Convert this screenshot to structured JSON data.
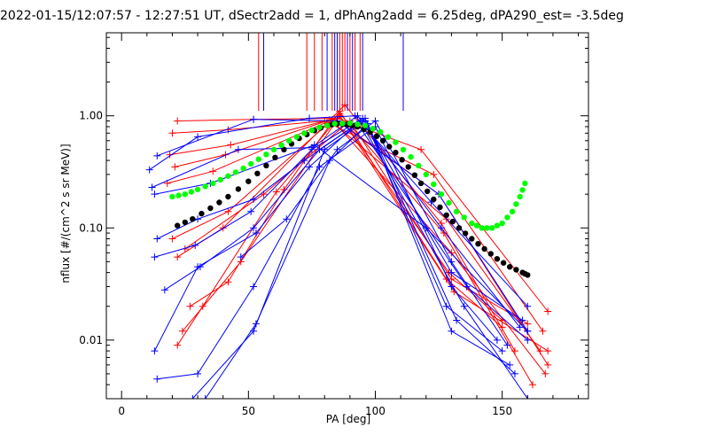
{
  "title": "2022-01-15/12:07:57 - 12:27:51 UT, dSectr2add = 1, dPhAng2add = 6.25deg, dPA290_est=  -3.5deg",
  "colors": {
    "red": "#ff0000",
    "blue": "#0000ff",
    "black": "#000000",
    "green": "#00ff00",
    "axis": "#000000",
    "background": "#ffffff"
  },
  "chart_data": {
    "type": "line",
    "title": "2022-01-15/12:07:57 - 12:27:51 UT, dSectr2add = 1, dPhAng2add = 6.25deg, dPA290_est=  -3.5deg",
    "xlabel": "PA [deg]",
    "ylabel": "nflux [#/(cm^2 s sr MeV)]",
    "xlim": [
      -6,
      184
    ],
    "ylim": [
      0.003,
      5.5
    ],
    "yscale": "log",
    "x_ticks": [
      0,
      50,
      100,
      150
    ],
    "x_tick_labels": [
      "0",
      "50",
      "100",
      "150"
    ],
    "y_ticks": [
      1.0,
      0.1,
      0.01
    ],
    "y_tick_labels": [
      "1.00",
      "0.10",
      "0.01"
    ],
    "grid": false,
    "legend": "none",
    "series_smooth": [
      {
        "color": "black",
        "x": [
          22,
          28,
          35,
          42,
          50,
          57,
          64,
          70,
          76,
          81,
          85,
          89,
          93,
          98,
          103,
          108,
          113,
          118,
          123,
          128,
          133,
          138,
          143,
          148,
          153,
          158,
          160
        ],
        "y": [
          0.105,
          0.12,
          0.15,
          0.19,
          0.26,
          0.36,
          0.5,
          0.63,
          0.74,
          0.82,
          0.85,
          0.84,
          0.8,
          0.72,
          0.6,
          0.47,
          0.35,
          0.25,
          0.18,
          0.13,
          0.1,
          0.08,
          0.065,
          0.053,
          0.045,
          0.04,
          0.038
        ]
      },
      {
        "color": "green",
        "x": [
          20,
          25,
          30,
          36,
          42,
          48,
          54,
          60,
          66,
          72,
          78,
          84,
          90,
          96,
          102,
          108,
          114,
          120,
          126,
          132,
          138,
          142,
          146,
          150,
          154,
          157,
          159
        ],
        "y": [
          0.19,
          0.2,
          0.22,
          0.25,
          0.29,
          0.34,
          0.41,
          0.5,
          0.6,
          0.7,
          0.79,
          0.85,
          0.86,
          0.82,
          0.72,
          0.58,
          0.43,
          0.3,
          0.2,
          0.14,
          0.11,
          0.1,
          0.1,
          0.11,
          0.14,
          0.19,
          0.25
        ]
      }
    ],
    "series_lines": [
      {
        "color": "red",
        "x": [
          22,
          52,
          85,
          118,
          168
        ],
        "y": [
          0.9,
          0.93,
          0.95,
          0.5,
          0.018
        ]
      },
      {
        "color": "red",
        "x": [
          20,
          42,
          80,
          123,
          166
        ],
        "y": [
          0.7,
          0.75,
          0.9,
          0.3,
          0.012
        ]
      },
      {
        "color": "red",
        "x": [
          19,
          43,
          82,
          128,
          165
        ],
        "y": [
          0.45,
          0.55,
          0.92,
          0.12,
          0.008
        ]
      },
      {
        "color": "red",
        "x": [
          21,
          41,
          84,
          125,
          168
        ],
        "y": [
          0.35,
          0.45,
          0.95,
          0.2,
          0.006
        ]
      },
      {
        "color": "red",
        "x": [
          18,
          36,
          83,
          130,
          167
        ],
        "y": [
          0.25,
          0.32,
          0.92,
          0.06,
          0.005
        ]
      },
      {
        "color": "red",
        "x": [
          20,
          42,
          86,
          127,
          162
        ],
        "y": [
          0.08,
          0.14,
          1.05,
          0.09,
          0.004
        ]
      },
      {
        "color": "red",
        "x": [
          22,
          40,
          88,
          126,
          155
        ],
        "y": [
          0.055,
          0.1,
          1.25,
          0.11,
          0.008
        ]
      },
      {
        "color": "red",
        "x": [
          22,
          32,
          61,
          86,
          129,
          150
        ],
        "y": [
          0.009,
          0.02,
          0.21,
          1.0,
          0.04,
          0.015
        ]
      },
      {
        "color": "red",
        "x": [
          27,
          42,
          64,
          86,
          128,
          150
        ],
        "y": [
          0.02,
          0.033,
          0.22,
          1.1,
          0.035,
          0.013
        ]
      },
      {
        "color": "red",
        "x": [
          24,
          47,
          86,
          131,
          168
        ],
        "y": [
          0.012,
          0.05,
          1.0,
          0.027,
          0.008
        ]
      },
      {
        "color": "red",
        "x": [
          25,
          56,
          90,
          130,
          160
        ],
        "y": [
          0.065,
          0.2,
          0.9,
          0.035,
          0.014
        ]
      },
      {
        "color": "blue",
        "x": [
          14,
          52,
          85,
          125,
          160
        ],
        "y": [
          0.44,
          0.93,
          0.9,
          0.2,
          0.012
        ]
      },
      {
        "color": "blue",
        "x": [
          11,
          30,
          74,
          92,
          122,
          160
        ],
        "y": [
          0.33,
          0.65,
          0.95,
          1.0,
          0.17,
          0.02
        ]
      },
      {
        "color": "blue",
        "x": [
          12,
          46,
          75,
          93,
          126,
          157
        ],
        "y": [
          0.23,
          0.5,
          0.52,
          1.0,
          0.1,
          0.013
        ]
      },
      {
        "color": "blue",
        "x": [
          13,
          35,
          76,
          120,
          160
        ],
        "y": [
          0.2,
          0.25,
          0.55,
          0.1,
          0.012
        ]
      },
      {
        "color": "blue",
        "x": [
          13,
          29,
          51,
          75,
          95,
          130,
          158
        ],
        "y": [
          0.055,
          0.07,
          0.14,
          0.5,
          0.95,
          0.04,
          0.015
        ]
      },
      {
        "color": "blue",
        "x": [
          13,
          30,
          53,
          74,
          94,
          135,
          160
        ],
        "y": [
          0.008,
          0.045,
          0.09,
          0.35,
          0.9,
          0.02,
          0.003
        ]
      },
      {
        "color": "blue",
        "x": [
          17,
          31,
          52,
          78,
          96,
          132,
          155
        ],
        "y": [
          0.028,
          0.045,
          0.1,
          0.5,
          0.95,
          0.015,
          0.005
        ]
      },
      {
        "color": "blue",
        "x": [
          14,
          30,
          52,
          72,
          93,
          136,
          160
        ],
        "y": [
          0.08,
          0.12,
          0.18,
          0.4,
          0.85,
          0.03,
          0.01
        ]
      },
      {
        "color": "blue",
        "x": [
          14,
          30,
          52,
          78,
          100,
          130,
          148
        ],
        "y": [
          0.0045,
          0.005,
          0.03,
          0.35,
          0.8,
          0.03,
          0.01
        ]
      },
      {
        "color": "blue",
        "x": [
          28,
          52,
          80,
          96,
          128,
          150
        ],
        "y": [
          0.003,
          0.012,
          0.5,
          0.9,
          0.02,
          0.008
        ]
      },
      {
        "color": "blue",
        "x": [
          33,
          53,
          82,
          97,
          130,
          153
        ],
        "y": [
          0.003,
          0.014,
          0.4,
          0.85,
          0.012,
          0.006
        ]
      },
      {
        "color": "blue",
        "x": [
          47,
          65,
          85,
          100,
          130,
          152
        ],
        "y": [
          0.055,
          0.12,
          0.5,
          0.9,
          0.05,
          0.009
        ]
      }
    ],
    "vertical_markers": [
      {
        "color": "red",
        "x": [
          54,
          73,
          76,
          79,
          83,
          86,
          87,
          88,
          90,
          92,
          94
        ]
      },
      {
        "color": "blue",
        "x": [
          56,
          81,
          84,
          85,
          89,
          91,
          95,
          111
        ]
      }
    ]
  }
}
